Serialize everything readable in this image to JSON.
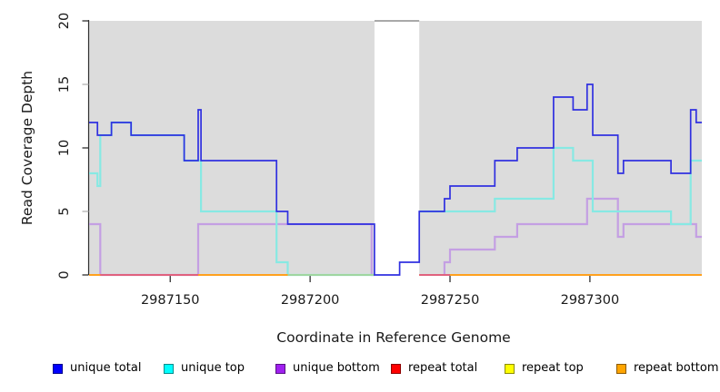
{
  "chart_data": {
    "type": "line",
    "step": true,
    "title": "",
    "xlabel": "Coordinate in Reference Genome",
    "ylabel": "Read Coverage Depth",
    "xlim": [
      2987121,
      2987340
    ],
    "ylim": [
      0,
      20
    ],
    "x_ticks": [
      2987150,
      2987200,
      2987250,
      2987300
    ],
    "y_ticks": [
      0,
      5,
      10,
      15,
      20
    ],
    "plot_bg": "#dcdcdc",
    "grid": false,
    "legend_position": "bottom",
    "gap_region": {
      "x_start": 2987223,
      "x_end": 2987239,
      "note": "white no-data band"
    },
    "series": [
      {
        "name": "unique total",
        "legend_color": "#0000ff",
        "line_color": "#3030e0",
        "width": 1.7,
        "segments": [
          [
            [
              2987121,
              12
            ],
            [
              2987124,
              11
            ],
            [
              2987129,
              12
            ],
            [
              2987136,
              11
            ],
            [
              2987155,
              9
            ],
            [
              2987160,
              13
            ],
            [
              2987161,
              9
            ],
            [
              2987188,
              5
            ],
            [
              2987192,
              4
            ],
            [
              2987223,
              0
            ],
            [
              2987232,
              1
            ],
            [
              2987239,
              5
            ],
            [
              2987248,
              6
            ],
            [
              2987250,
              7
            ],
            [
              2987266,
              9
            ],
            [
              2987274,
              10
            ],
            [
              2987287,
              14
            ],
            [
              2987294,
              13
            ],
            [
              2987299,
              15
            ],
            [
              2987301,
              11
            ],
            [
              2987310,
              8
            ],
            [
              2987312,
              9
            ],
            [
              2987329,
              8
            ],
            [
              2987336,
              13
            ],
            [
              2987338,
              12
            ],
            [
              2987340,
              12
            ]
          ]
        ]
      },
      {
        "name": "unique top",
        "legend_color": "#00ffff",
        "line_color": "#87e9e3",
        "width": 2.2,
        "segments": [
          [
            [
              2987121,
              8
            ],
            [
              2987124,
              7
            ],
            [
              2987125,
              11
            ],
            [
              2987129,
              12
            ],
            [
              2987136,
              11
            ],
            [
              2987155,
              9
            ],
            [
              2987161,
              5
            ],
            [
              2987188,
              1
            ],
            [
              2987192,
              0
            ],
            [
              2987223,
              0
            ]
          ],
          [
            [
              2987239,
              5
            ],
            [
              2987266,
              6
            ],
            [
              2987287,
              10
            ],
            [
              2987294,
              9
            ],
            [
              2987301,
              5
            ],
            [
              2987329,
              4
            ],
            [
              2987336,
              9
            ],
            [
              2987340,
              9
            ]
          ]
        ]
      },
      {
        "name": "unique bottom",
        "legend_color": "#a020f0",
        "line_color": "#c49fe3",
        "width": 2.2,
        "segments": [
          [
            [
              2987121,
              4
            ],
            [
              2987125,
              0
            ],
            [
              2987160,
              4
            ],
            [
              2987222,
              0
            ],
            [
              2987223,
              0
            ]
          ],
          [
            [
              2987248,
              0
            ],
            [
              2987248,
              1
            ],
            [
              2987250,
              2
            ],
            [
              2987266,
              3
            ],
            [
              2987274,
              4
            ],
            [
              2987299,
              6
            ],
            [
              2987310,
              3
            ],
            [
              2987312,
              4
            ],
            [
              2987338,
              3
            ],
            [
              2987340,
              3
            ]
          ]
        ]
      },
      {
        "name": "repeat total",
        "legend_color": "#ff0000",
        "line_color": "#e0617e",
        "width": 2,
        "segments": [
          [
            [
              2987121,
              0
            ],
            [
              2987223,
              0
            ]
          ],
          [
            [
              2987239,
              0
            ],
            [
              2987340,
              0
            ]
          ]
        ]
      },
      {
        "name": "repeat top",
        "legend_color": "#ffff00",
        "line_color": "#f0ec70",
        "width": 2,
        "segments": [
          [
            [
              2987121,
              0
            ],
            [
              2987223,
              0
            ]
          ],
          [
            [
              2987239,
              0
            ],
            [
              2987340,
              0
            ]
          ]
        ]
      },
      {
        "name": "repeat bottom",
        "legend_color": "#ffa500",
        "line_color": "#ffa11e",
        "width": 2,
        "segments": [
          [
            [
              2987121,
              0
            ],
            [
              2987223,
              0
            ]
          ],
          [
            [
              2987239,
              0
            ],
            [
              2987340,
              0
            ]
          ]
        ]
      }
    ],
    "overdraw_segments": [
      {
        "from": 2987125,
        "to": 2987160,
        "color": "#e0617e"
      },
      {
        "from": 2987192,
        "to": 2987223,
        "color": "#9fd6a0"
      },
      {
        "from": 2987239,
        "to": 2987250,
        "color": "#e0617e"
      }
    ]
  },
  "legend": {
    "items": [
      {
        "label": "unique total",
        "color": "#0000ff"
      },
      {
        "label": "unique top",
        "color": "#00ffff"
      },
      {
        "label": "unique bottom",
        "color": "#a020f0"
      },
      {
        "label": "repeat total",
        "color": "#ff0000"
      },
      {
        "label": "repeat top",
        "color": "#ffff00"
      },
      {
        "label": "repeat bottom",
        "color": "#ffa500"
      }
    ]
  }
}
